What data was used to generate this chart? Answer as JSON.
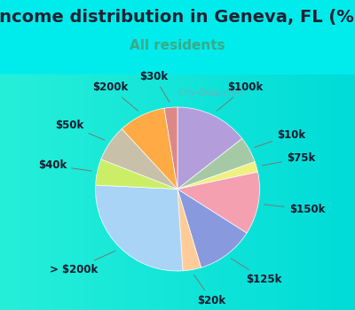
{
  "title": "Income distribution in Geneva, FL (%)",
  "subtitle": "All residents",
  "bg_outer": "#00ECEC",
  "bg_inner_colors": [
    "#e8f5f0",
    "#d0ede8"
  ],
  "watermark": "City-Data.com",
  "labels": [
    "$100k",
    "$10k",
    "$75k",
    "$150k",
    "$125k",
    "$20k",
    "> $200k",
    "$40k",
    "$50k",
    "$200k",
    "$30k"
  ],
  "values": [
    14.0,
    5.0,
    2.0,
    12.0,
    11.0,
    3.5,
    26.0,
    5.0,
    7.0,
    9.0,
    2.5
  ],
  "colors": [
    "#b39ddb",
    "#a5c9a5",
    "#f0f080",
    "#f4a0b0",
    "#8899dd",
    "#ffcc99",
    "#aad4f5",
    "#ccee66",
    "#c8c0a8",
    "#ffaa44",
    "#dd8888"
  ],
  "startangle": 90,
  "figsize": [
    4.0,
    3.5
  ],
  "dpi": 100,
  "title_fontsize": 14,
  "subtitle_fontsize": 11,
  "label_fontsize": 8.5
}
